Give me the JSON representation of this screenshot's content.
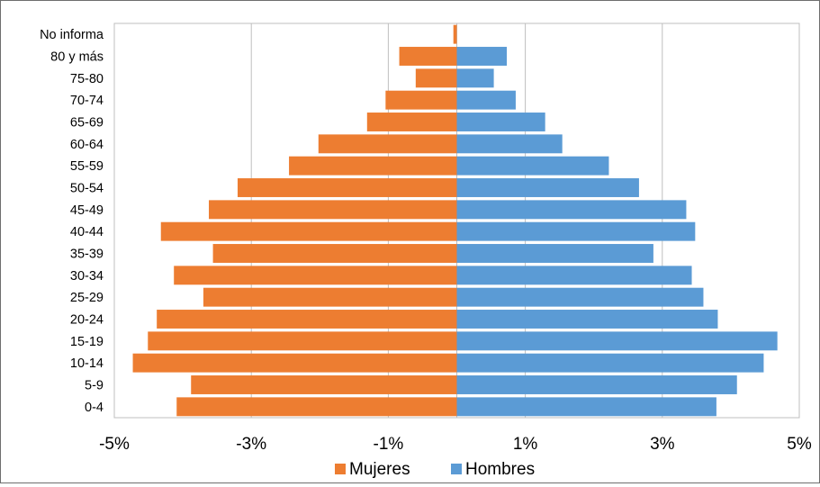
{
  "chart_data": {
    "type": "bar",
    "orientation": "horizontal",
    "stacked_diverging": true,
    "title": "",
    "xlabel": "",
    "ylabel": "",
    "categories": [
      "No informa",
      "80 y más",
      "75-80",
      "70-74",
      "65-69",
      "60-64",
      "55-59",
      "50-54",
      "45-49",
      "40-44",
      "35-39",
      "30-34",
      "25-29",
      "20-24",
      "15-19",
      "10-14",
      "5-9",
      "0-4"
    ],
    "series": [
      {
        "name": "Mujeres",
        "color": "#ED7D31",
        "values": [
          -0.05,
          -0.84,
          -0.6,
          -1.04,
          -1.31,
          -2.02,
          -2.45,
          -3.2,
          -3.62,
          -4.32,
          -3.56,
          -4.13,
          -3.7,
          -4.38,
          -4.51,
          -4.73,
          -3.88,
          -4.09
        ]
      },
      {
        "name": "Hombres",
        "color": "#5B9BD5",
        "values": [
          0.0,
          0.73,
          0.54,
          0.86,
          1.29,
          1.54,
          2.22,
          2.66,
          3.35,
          3.48,
          2.87,
          3.43,
          3.6,
          3.81,
          4.68,
          4.48,
          4.09,
          3.79
        ]
      }
    ],
    "xlim": [
      -5,
      5
    ],
    "xticks": [
      -5,
      -3,
      -1,
      1,
      3,
      5
    ],
    "xtick_labels": [
      "-5%",
      "-3%",
      "-1%",
      "1%",
      "3%",
      "5%"
    ],
    "grid": "vertical",
    "legend_position": "bottom-center"
  }
}
